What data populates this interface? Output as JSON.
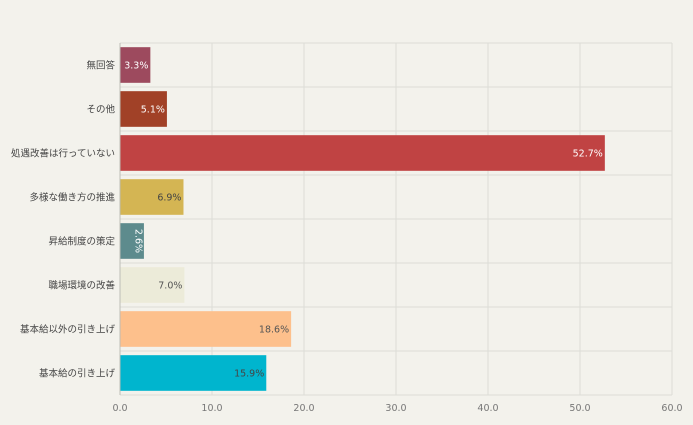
{
  "chart_data": {
    "type": "bar",
    "orientation": "horizontal",
    "title": "",
    "xlabel": "",
    "ylabel": "",
    "xlim": [
      0,
      60
    ],
    "xticks": [
      "0.0",
      "10.0",
      "20.0",
      "30.0",
      "40.0",
      "50.0",
      "60.0"
    ],
    "grid": true,
    "categories": [
      "無回答",
      "その他",
      "処遇改善は行っていない",
      "多様な働き方の推進",
      "昇給制度の策定",
      "職場環境の改善",
      "基本給以外の引き上げ",
      "基本給の引き上げ"
    ],
    "values": [
      3.3,
      5.1,
      52.7,
      6.9,
      2.6,
      7.0,
      18.6,
      15.9
    ],
    "value_labels": [
      "3.3%",
      "5.1%",
      "52.7%",
      "6.9%",
      "2.6%",
      "7.0%",
      "18.6%",
      "15.9%"
    ],
    "colors": [
      "#9d4a5e",
      "#a14127",
      "#c04343",
      "#d4b553",
      "#5d8b8d",
      "#ecebd9",
      "#fdc08c",
      "#00b5ce"
    ],
    "label_colors": [
      "#ffffff",
      "#ffffff",
      "#ffffff",
      "#444444",
      "#ffffff",
      "#555555",
      "#555555",
      "#444444"
    ]
  }
}
